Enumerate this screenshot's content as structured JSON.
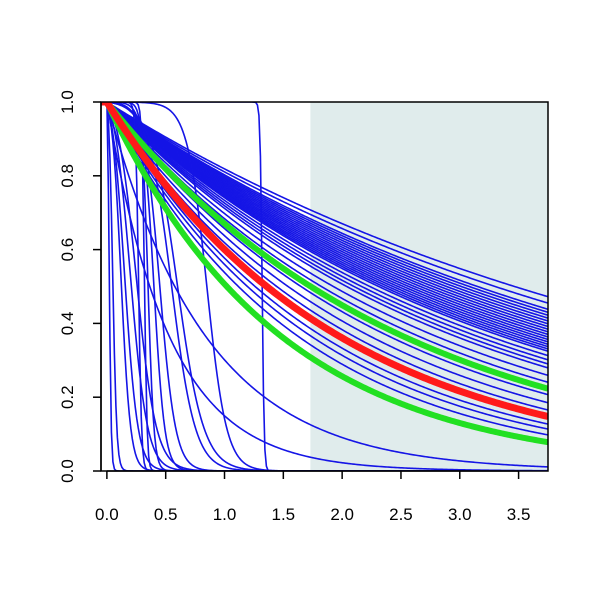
{
  "chart_data": {
    "type": "line",
    "title": "",
    "xlabel": "",
    "ylabel": "",
    "xlim": [
      -0.05,
      3.75
    ],
    "ylim": [
      0.0,
      1.0
    ],
    "x_ticks": [
      "0.0",
      "0.5",
      "1.0",
      "1.5",
      "2.0",
      "2.5",
      "3.0",
      "3.5"
    ],
    "y_ticks": [
      "0.0",
      "0.2",
      "0.4",
      "0.6",
      "0.8",
      "1.0"
    ],
    "grid": false,
    "legend": "none",
    "shaded_region": {
      "x": [
        1.73,
        3.75
      ],
      "color": "#e0ecec"
    },
    "colors": {
      "ensemble": "#1515e6",
      "median": "#ff1a1a",
      "bounds": "#22e022"
    },
    "series": [
      {
        "role": "ensemble",
        "color": "#1515e6",
        "note_kind": "exponential",
        "rates": [
          0.2,
          0.21,
          0.22,
          0.225,
          0.23,
          0.235,
          0.24,
          0.245,
          0.25,
          0.255,
          0.26,
          0.265,
          0.27,
          0.275,
          0.28,
          0.285,
          0.29,
          0.295,
          0.3,
          0.31,
          0.32,
          0.33,
          0.34,
          0.36,
          0.38,
          0.4,
          0.42,
          0.45,
          0.48,
          0.52,
          0.55,
          0.58,
          0.62,
          1.2,
          1.9
        ]
      },
      {
        "role": "ensemble-steep",
        "color": "#1515e6",
        "sigmoid_points": [
          {
            "x0": 0.02,
            "k": 120
          },
          {
            "x0": 0.05,
            "k": 60
          },
          {
            "x0": 0.12,
            "k": 25
          },
          {
            "x0": 0.15,
            "k": 18
          },
          {
            "x0": 0.2,
            "k": 14
          },
          {
            "x0": 0.25,
            "k": 12
          },
          {
            "x0": 0.27,
            "k": 80
          },
          {
            "x0": 0.32,
            "k": 90
          },
          {
            "x0": 0.35,
            "k": 40
          },
          {
            "x0": 0.4,
            "k": 22
          },
          {
            "x0": 0.45,
            "k": 15
          },
          {
            "x0": 0.55,
            "k": 10
          },
          {
            "x0": 0.6,
            "k": 9
          },
          {
            "x0": 0.85,
            "k": 12
          },
          {
            "x0": 1.32,
            "k": 120
          }
        ]
      },
      {
        "role": "upper-bound",
        "color": "#22e022",
        "rate": 0.4
      },
      {
        "role": "median",
        "color": "#ff1a1a",
        "rate": 0.51
      },
      {
        "role": "lower-bound",
        "color": "#22e022",
        "rate": 0.68
      }
    ]
  }
}
